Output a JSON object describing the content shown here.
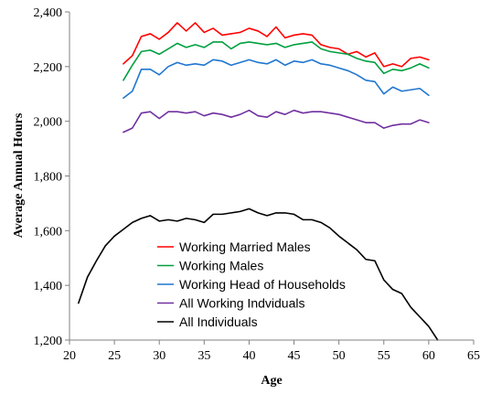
{
  "chart_data": {
    "type": "line",
    "title": "",
    "xlabel": "Age",
    "ylabel": "Average Annual Hours",
    "xlim": [
      20,
      65
    ],
    "ylim": [
      1200,
      2400
    ],
    "xticks": [
      "20",
      "25",
      "30",
      "35",
      "40",
      "45",
      "50",
      "55",
      "60",
      "65"
    ],
    "yticks": [
      "1,200",
      "1,400",
      "1,600",
      "1,800",
      "2,000",
      "2,200",
      "2,400"
    ],
    "xtick_values": [
      20,
      25,
      30,
      35,
      40,
      45,
      50,
      55,
      60,
      65
    ],
    "ytick_values": [
      1200,
      1400,
      1600,
      1800,
      2000,
      2200,
      2400
    ],
    "grid": false,
    "legend_position": "inside-bottom-center",
    "series": [
      {
        "name": "Working Married Males",
        "color": "#ff0000",
        "x": [
          26,
          27,
          28,
          29,
          30,
          31,
          32,
          33,
          34,
          35,
          36,
          37,
          38,
          39,
          40,
          41,
          42,
          43,
          44,
          45,
          46,
          47,
          48,
          49,
          50,
          51,
          52,
          53,
          54,
          55,
          56,
          57,
          58,
          59,
          60
        ],
        "values": [
          2210,
          2240,
          2310,
          2320,
          2300,
          2325,
          2360,
          2330,
          2360,
          2325,
          2340,
          2315,
          2320,
          2325,
          2340,
          2330,
          2310,
          2345,
          2305,
          2315,
          2320,
          2315,
          2280,
          2270,
          2265,
          2245,
          2255,
          2235,
          2250,
          2200,
          2210,
          2200,
          2230,
          2235,
          2225
        ]
      },
      {
        "name": "Working Males",
        "color": "#00a040",
        "x": [
          26,
          27,
          28,
          29,
          30,
          31,
          32,
          33,
          34,
          35,
          36,
          37,
          38,
          39,
          40,
          41,
          42,
          43,
          44,
          45,
          46,
          47,
          48,
          49,
          50,
          51,
          52,
          53,
          54,
          55,
          56,
          57,
          58,
          59,
          60
        ],
        "values": [
          2150,
          2205,
          2255,
          2260,
          2245,
          2265,
          2285,
          2270,
          2280,
          2270,
          2290,
          2290,
          2265,
          2285,
          2290,
          2285,
          2280,
          2285,
          2270,
          2280,
          2285,
          2290,
          2265,
          2255,
          2250,
          2245,
          2230,
          2220,
          2215,
          2175,
          2190,
          2185,
          2195,
          2210,
          2195
        ]
      },
      {
        "name": "Working Head of Households",
        "color": "#1f77d0",
        "x": [
          26,
          27,
          28,
          29,
          30,
          31,
          32,
          33,
          34,
          35,
          36,
          37,
          38,
          39,
          40,
          41,
          42,
          43,
          44,
          45,
          46,
          47,
          48,
          49,
          50,
          51,
          52,
          53,
          54,
          55,
          56,
          57,
          58,
          59,
          60
        ],
        "values": [
          2085,
          2110,
          2190,
          2190,
          2170,
          2200,
          2215,
          2205,
          2210,
          2205,
          2225,
          2220,
          2205,
          2215,
          2225,
          2215,
          2210,
          2225,
          2205,
          2220,
          2215,
          2225,
          2210,
          2205,
          2195,
          2185,
          2170,
          2150,
          2145,
          2100,
          2125,
          2110,
          2115,
          2120,
          2095
        ]
      },
      {
        "name": "All Working Indviduals",
        "color": "#7030a0",
        "x": [
          26,
          27,
          28,
          29,
          30,
          31,
          32,
          33,
          34,
          35,
          36,
          37,
          38,
          39,
          40,
          41,
          42,
          43,
          44,
          45,
          46,
          47,
          48,
          49,
          50,
          51,
          52,
          53,
          54,
          55,
          56,
          57,
          58,
          59,
          60
        ],
        "values": [
          1960,
          1975,
          2030,
          2035,
          2010,
          2035,
          2035,
          2030,
          2035,
          2020,
          2030,
          2025,
          2015,
          2025,
          2040,
          2020,
          2015,
          2035,
          2025,
          2040,
          2030,
          2035,
          2035,
          2030,
          2025,
          2015,
          2005,
          1995,
          1995,
          1975,
          1985,
          1990,
          1990,
          2005,
          1995
        ]
      },
      {
        "name": "All Individuals",
        "color": "#000000",
        "x": [
          21,
          22,
          23,
          24,
          25,
          26,
          27,
          28,
          29,
          30,
          31,
          32,
          33,
          34,
          35,
          36,
          37,
          38,
          39,
          40,
          41,
          42,
          43,
          44,
          45,
          46,
          47,
          48,
          49,
          50,
          51,
          52,
          53,
          54,
          55,
          56,
          57,
          58,
          59,
          60,
          61
        ],
        "values": [
          1335,
          1430,
          1490,
          1545,
          1580,
          1605,
          1630,
          1645,
          1655,
          1635,
          1640,
          1635,
          1645,
          1640,
          1630,
          1660,
          1660,
          1665,
          1670,
          1680,
          1665,
          1655,
          1665,
          1665,
          1660,
          1640,
          1640,
          1630,
          1610,
          1580,
          1555,
          1530,
          1495,
          1490,
          1420,
          1385,
          1370,
          1320,
          1285,
          1250,
          1200
        ]
      }
    ]
  }
}
